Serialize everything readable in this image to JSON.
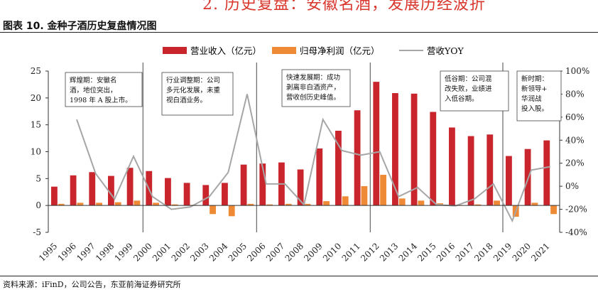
{
  "header": {
    "banner": "2. 历史复盘：安徽名酒，发展历经波折",
    "figure_title": "图表 10. 金种子酒历史复盘情况图"
  },
  "footer": {
    "source": "资料来源：iFinD，公司公告，东亚前海证券研究所"
  },
  "colors": {
    "revenue": "#c9252c",
    "profit": "#ee8a36",
    "yoy": "#a6a6a6",
    "phase_line": "#666666"
  },
  "chart_data": {
    "type": "bar+line",
    "categories": [
      "1995",
      "1996",
      "1997",
      "1998",
      "1999",
      "2000",
      "2001",
      "2002",
      "2003",
      "2004",
      "2005",
      "2006",
      "2007",
      "2008",
      "2009",
      "2010",
      "2011",
      "2012",
      "2013",
      "2014",
      "2015",
      "2016",
      "2017",
      "2018",
      "2019",
      "2020",
      "2021"
    ],
    "series": [
      {
        "name": "营业收入（亿元）",
        "kind": "bar",
        "axis": "left",
        "values": [
          3.5,
          5.6,
          6.2,
          5.5,
          7.0,
          6.4,
          5.1,
          4.2,
          3.8,
          4.2,
          7.6,
          7.8,
          8.0,
          6.7,
          10.6,
          13.9,
          17.7,
          23.0,
          20.9,
          20.8,
          17.4,
          14.5,
          12.9,
          13.2,
          9.2,
          10.5,
          12.1
        ]
      },
      {
        "name": "归母净利润（亿元）",
        "kind": "bar",
        "axis": "left",
        "values": [
          0.3,
          0.5,
          0.5,
          0.6,
          0.9,
          0.5,
          0.2,
          0.1,
          -1.6,
          -2.0,
          0.3,
          0.2,
          0.3,
          0.3,
          0.8,
          1.7,
          3.6,
          5.7,
          1.3,
          0.9,
          0.4,
          0.1,
          0.2,
          0.9,
          -2.1,
          0.5,
          -1.6
        ]
      },
      {
        "name": "营收YOY",
        "kind": "line",
        "axis": "right",
        "values": [
          null,
          58,
          11,
          -11,
          26,
          -9,
          -20,
          -18,
          -9,
          12,
          80,
          2,
          2,
          -16,
          58,
          31,
          27,
          30,
          -9,
          -1,
          -16,
          -17,
          -11,
          2,
          -30,
          14,
          17
        ]
      }
    ],
    "y_left": {
      "min": -5,
      "max": 25,
      "ticks": [
        -5,
        0,
        5,
        10,
        15,
        20,
        25
      ]
    },
    "y_right": {
      "min": -40,
      "max": 100,
      "ticks": [
        "-40%",
        "-20%",
        "0%",
        "20%",
        "40%",
        "60%",
        "80%",
        "100%"
      ]
    },
    "phase_dividers_after": [
      "1999",
      "2005",
      "2011",
      "2018"
    ],
    "legend": [
      "营业收入（亿元）",
      "归母净利润（亿元）",
      "营收YOY"
    ],
    "annotations": [
      {
        "lines": [
          "辉煌期：安徽名",
          "酒，地位突出，",
          "1998 年 A 股上市。"
        ]
      },
      {
        "lines": [
          "行业调整期：公司",
          "多元化发展，未重",
          "视白酒业务。"
        ]
      },
      {
        "lines": [
          "快速发展期：成功",
          "剥离非白酒资产，",
          "营收创历史峰值。"
        ]
      },
      {
        "lines": [
          "低谷期：公司混",
          "改失败，业绩进",
          "入低谷期。"
        ]
      },
      {
        "lines": [
          "新时期：",
          "新领导+",
          "华润战",
          "投入股。"
        ]
      }
    ]
  }
}
